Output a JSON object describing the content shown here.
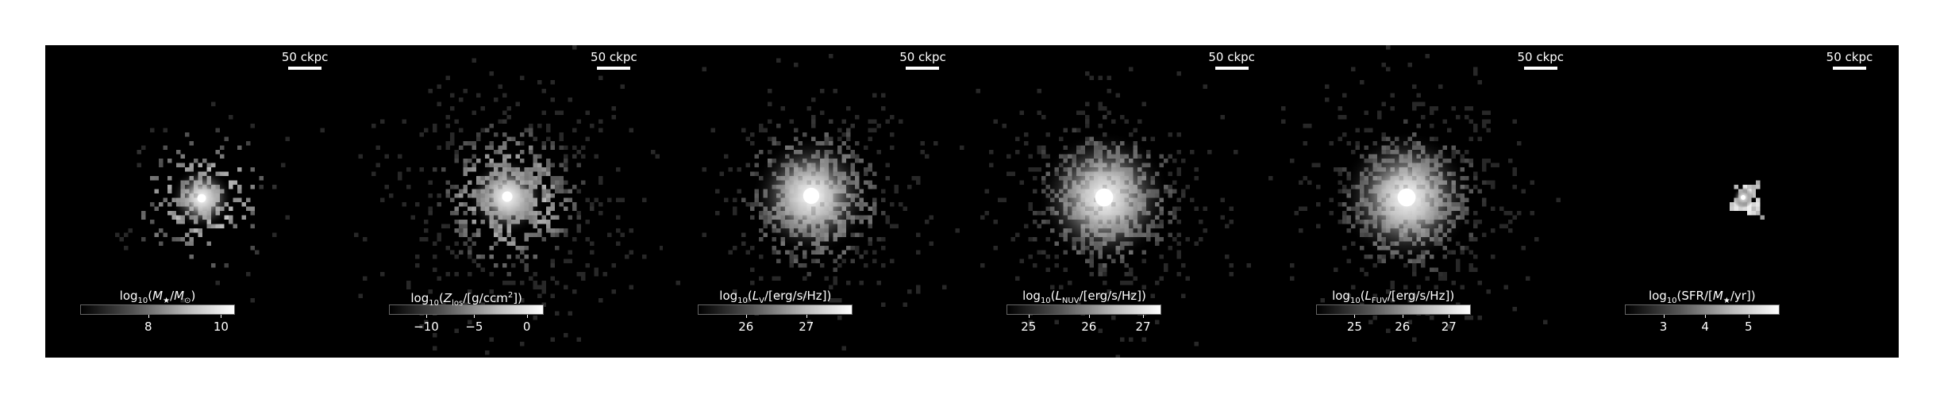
{
  "panels": [
    {
      "scalebar_label": "50 ckpc",
      "colorbar": {
        "title_parts": [
          "log",
          "10",
          "(M",
          "★",
          "/M",
          "⊙",
          ")"
        ],
        "title": "log10(M★/M⊙)",
        "ticks": [
          {
            "label": "8",
            "frac": 0.44
          },
          {
            "label": "10",
            "frac": 0.91
          }
        ]
      }
    },
    {
      "scalebar_label": "50 ckpc",
      "colorbar": {
        "title": "log10(Zlos/[g/ccm2])",
        "ticks": [
          {
            "label": "−10",
            "frac": 0.24
          },
          {
            "label": "−5",
            "frac": 0.55
          },
          {
            "label": "0",
            "frac": 0.89
          }
        ]
      }
    },
    {
      "scalebar_label": "50 ckpc",
      "colorbar": {
        "title": "log10(LV/[erg/s/Hz])",
        "ticks": [
          {
            "label": "26",
            "frac": 0.31
          },
          {
            "label": "27",
            "frac": 0.7
          }
        ]
      }
    },
    {
      "scalebar_label": "50 ckpc",
      "colorbar": {
        "title": "log10(LNUV/[erg/s/Hz])",
        "ticks": [
          {
            "label": "25",
            "frac": 0.14
          },
          {
            "label": "26",
            "frac": 0.53
          },
          {
            "label": "27",
            "frac": 0.88
          }
        ]
      }
    },
    {
      "scalebar_label": "50 ckpc",
      "colorbar": {
        "title": "log10(LFUV/[erg/s/Hz])",
        "ticks": [
          {
            "label": "25",
            "frac": 0.25
          },
          {
            "label": "26",
            "frac": 0.56
          },
          {
            "label": "27",
            "frac": 0.86
          }
        ]
      }
    },
    {
      "scalebar_label": "50 ckpc",
      "colorbar": {
        "title": "log10(SFR/[M★/yr])",
        "ticks": [
          {
            "label": "3",
            "frac": 0.25
          },
          {
            "label": "4",
            "frac": 0.52
          },
          {
            "label": "5",
            "frac": 0.8
          }
        ]
      }
    }
  ],
  "colormap": "greys",
  "background_color": "#000000"
}
